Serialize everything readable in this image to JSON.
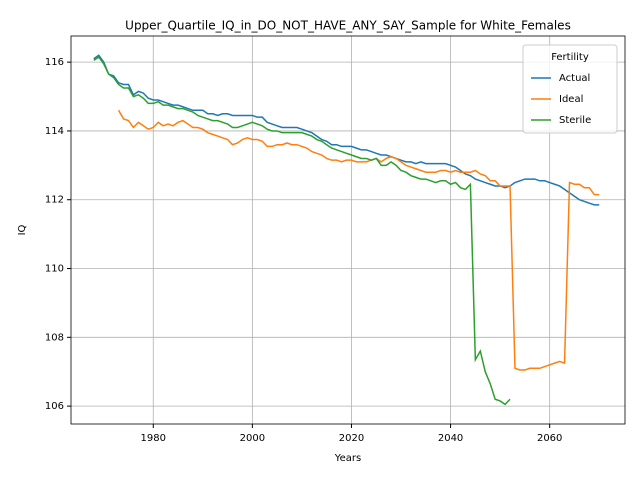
{
  "chart_data": {
    "type": "line",
    "title": "Upper_Quartile_IQ_in_DO_NOT_HAVE_ANY_SAY_Sample for White_Females",
    "xlabel": "Years",
    "ylabel": "IQ",
    "legend_title": "Fertility",
    "legend": "upper right",
    "grid": true,
    "xlim": [
      1963.4,
      2075.2
    ],
    "ylim": [
      105.48,
      116.76
    ],
    "xticks": [
      1980,
      2000,
      2020,
      2040,
      2060
    ],
    "yticks": [
      106,
      108,
      110,
      112,
      114,
      116
    ],
    "x": [
      1968,
      1969,
      1970,
      1971,
      1972,
      1973,
      1974,
      1975,
      1976,
      1977,
      1978,
      1979,
      1980,
      1981,
      1982,
      1983,
      1984,
      1985,
      1986,
      1987,
      1988,
      1989,
      1990,
      1991,
      1992,
      1993,
      1994,
      1995,
      1996,
      1997,
      1998,
      1999,
      2000,
      2001,
      2002,
      2003,
      2004,
      2005,
      2006,
      2007,
      2008,
      2009,
      2010,
      2011,
      2012,
      2013,
      2014,
      2015,
      2016,
      2017,
      2018,
      2019,
      2020,
      2021,
      2022,
      2023,
      2024,
      2025,
      2026,
      2027,
      2028,
      2029,
      2030,
      2031,
      2032,
      2033,
      2034,
      2035,
      2036,
      2037,
      2038,
      2039,
      2040,
      2041,
      2042,
      2043,
      2044,
      2045,
      2046,
      2047,
      2048,
      2049,
      2050,
      2051,
      2052,
      2053,
      2054,
      2055,
      2056,
      2057,
      2058,
      2059,
      2060,
      2061,
      2062,
      2063,
      2064,
      2065,
      2066,
      2067,
      2068,
      2069,
      2070
    ],
    "series": [
      {
        "name": "Actual",
        "color": "#1f77b4",
        "values": [
          116.1,
          116.2,
          116.0,
          115.65,
          115.6,
          115.4,
          115.35,
          115.35,
          115.05,
          115.15,
          115.1,
          114.95,
          114.9,
          114.9,
          114.85,
          114.8,
          114.75,
          114.75,
          114.7,
          114.65,
          114.6,
          114.6,
          114.6,
          114.5,
          114.5,
          114.45,
          114.5,
          114.5,
          114.45,
          114.45,
          114.45,
          114.45,
          114.45,
          114.4,
          114.4,
          114.25,
          114.2,
          114.15,
          114.1,
          114.1,
          114.1,
          114.1,
          114.05,
          114.0,
          113.95,
          113.85,
          113.75,
          113.7,
          113.6,
          113.6,
          113.55,
          113.55,
          113.55,
          113.5,
          113.45,
          113.45,
          113.4,
          113.35,
          113.3,
          113.3,
          113.25,
          113.2,
          113.15,
          113.1,
          113.1,
          113.05,
          113.1,
          113.05,
          113.05,
          113.05,
          113.05,
          113.05,
          113.0,
          112.95,
          112.85,
          112.75,
          112.7,
          112.6,
          112.55,
          112.5,
          112.45,
          112.4,
          112.4,
          112.35,
          112.4,
          112.5,
          112.55,
          112.6,
          112.6,
          112.6,
          112.55,
          112.55,
          112.5,
          112.45,
          112.4,
          112.3,
          112.2,
          112.1,
          112.0,
          111.95,
          111.9,
          111.85,
          111.85
        ]
      },
      {
        "name": "Ideal",
        "color": "#ff7f0e",
        "values": [
          null,
          null,
          null,
          null,
          null,
          114.6,
          114.35,
          114.3,
          114.1,
          114.25,
          114.15,
          114.05,
          114.1,
          114.25,
          114.15,
          114.2,
          114.15,
          114.25,
          114.3,
          114.2,
          114.1,
          114.1,
          114.05,
          113.95,
          113.9,
          113.85,
          113.8,
          113.75,
          113.6,
          113.65,
          113.75,
          113.8,
          113.75,
          113.75,
          113.7,
          113.55,
          113.55,
          113.6,
          113.6,
          113.65,
          113.6,
          113.6,
          113.55,
          113.5,
          113.4,
          113.35,
          113.3,
          113.2,
          113.15,
          113.15,
          113.1,
          113.15,
          113.15,
          113.1,
          113.1,
          113.1,
          113.15,
          113.2,
          113.1,
          113.2,
          113.25,
          113.2,
          113.1,
          113.0,
          112.95,
          112.9,
          112.85,
          112.8,
          112.8,
          112.8,
          112.85,
          112.85,
          112.8,
          112.85,
          112.8,
          112.8,
          112.8,
          112.85,
          112.75,
          112.7,
          112.55,
          112.55,
          112.4,
          112.4,
          112.4,
          107.1,
          107.05,
          107.05,
          107.1,
          107.1,
          107.1,
          107.15,
          107.2,
          107.25,
          107.3,
          107.25,
          112.5,
          112.45,
          112.45,
          112.35,
          112.35,
          112.15,
          112.15
        ]
      },
      {
        "name": "Sterile",
        "color": "#2ca02c",
        "values": [
          116.05,
          116.15,
          115.95,
          115.65,
          115.55,
          115.35,
          115.25,
          115.25,
          115.0,
          115.05,
          114.95,
          114.8,
          114.8,
          114.85,
          114.75,
          114.75,
          114.7,
          114.65,
          114.65,
          114.6,
          114.55,
          114.45,
          114.4,
          114.35,
          114.3,
          114.3,
          114.25,
          114.2,
          114.1,
          114.1,
          114.15,
          114.2,
          114.25,
          114.2,
          114.15,
          114.05,
          114.0,
          114.0,
          113.95,
          113.95,
          113.95,
          113.95,
          113.95,
          113.9,
          113.85,
          113.75,
          113.7,
          113.6,
          113.5,
          113.45,
          113.4,
          113.35,
          113.3,
          113.25,
          113.2,
          113.2,
          113.15,
          113.2,
          113.0,
          113.0,
          113.1,
          113.0,
          112.85,
          112.8,
          112.7,
          112.65,
          112.6,
          112.6,
          112.55,
          112.5,
          112.55,
          112.55,
          112.45,
          112.5,
          112.35,
          112.3,
          112.45,
          107.35,
          107.6,
          107.0,
          106.65,
          106.2,
          106.15,
          106.05,
          106.2,
          null,
          null,
          null,
          null,
          null,
          null,
          null,
          null,
          null,
          null,
          null,
          null,
          null,
          null,
          null,
          null,
          null,
          null
        ]
      }
    ]
  }
}
